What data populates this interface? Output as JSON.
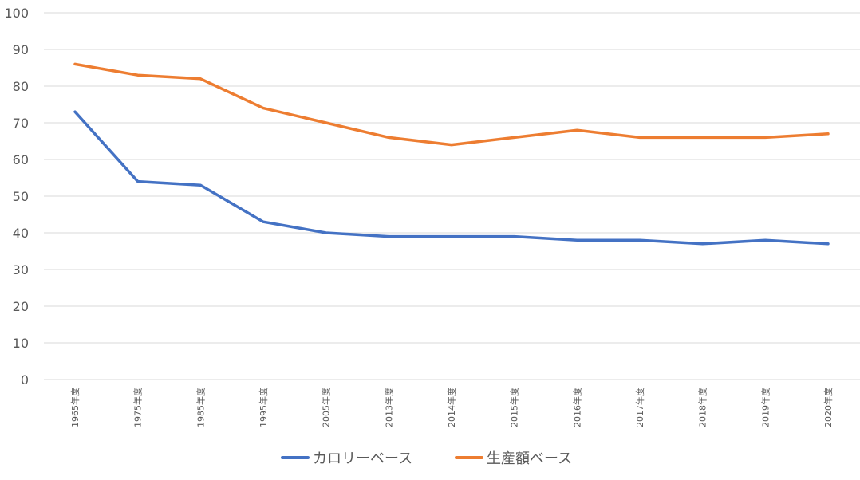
{
  "chart_data": {
    "type": "line",
    "categories": [
      "1965年度",
      "1975年度",
      "1985年度",
      "1995年度",
      "2005年度",
      "2013年度",
      "2014年度",
      "2015年度",
      "2016年度",
      "2017年度",
      "2018年度",
      "2019年度",
      "2020年度"
    ],
    "series": [
      {
        "name": "カロリーベース",
        "color": "#4472c4",
        "values": [
          73,
          54,
          53,
          43,
          40,
          39,
          39,
          39,
          38,
          38,
          37,
          38,
          37
        ]
      },
      {
        "name": "生産額ベース",
        "color": "#ed7d31",
        "values": [
          86,
          83,
          82,
          74,
          70,
          66,
          64,
          66,
          68,
          66,
          66,
          66,
          67
        ]
      }
    ],
    "ylim": [
      0,
      100
    ],
    "yticks": [
      0,
      10,
      20,
      30,
      40,
      50,
      60,
      70,
      80,
      90,
      100
    ],
    "grid": true,
    "legend_position": "bottom"
  }
}
